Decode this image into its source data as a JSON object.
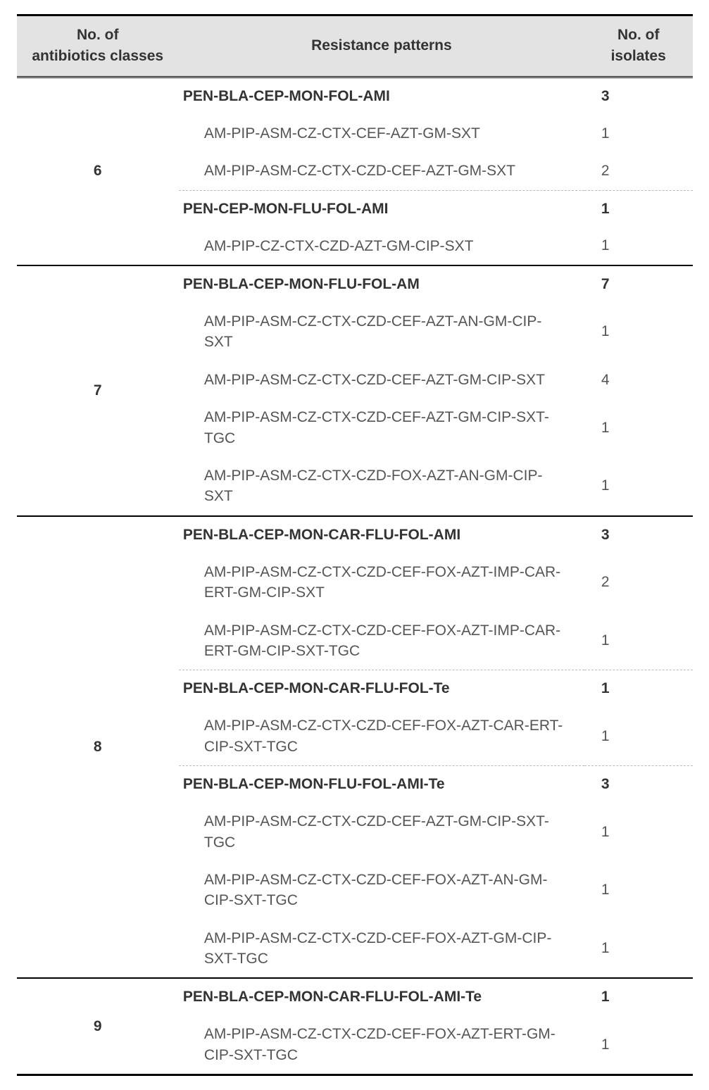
{
  "table": {
    "columns": [
      "No. of\nantibiotics classes",
      "Resistance patterns",
      "No. of\nisolates"
    ],
    "col_widths_pct": [
      24,
      60,
      16
    ],
    "header_bg": "#e3e3e3",
    "border_color": "#000000",
    "dashed_color": "#bbbbbb",
    "subtext_color": "#555555",
    "font_size_pt": 16,
    "classes": [
      {
        "num_classes": "6",
        "groups": [
          {
            "pattern_bold": "PEN-BLA-CEP-MON-FOL-AMI",
            "isolates_bold": "3",
            "subs": [
              {
                "pattern": "AM-PIP-ASM-CZ-CTX-CEF-AZT-GM-SXT",
                "isolates": "1"
              },
              {
                "pattern": "AM-PIP-ASM-CZ-CTX-CZD-CEF-AZT-GM-SXT",
                "isolates": "2"
              }
            ]
          },
          {
            "pattern_bold": "PEN-CEP-MON-FLU-FOL-AMI",
            "isolates_bold": "1",
            "subs": [
              {
                "pattern": "AM-PIP-CZ-CTX-CZD-AZT-GM-CIP-SXT",
                "isolates": "1"
              }
            ]
          }
        ]
      },
      {
        "num_classes": "7",
        "groups": [
          {
            "pattern_bold": "PEN-BLA-CEP-MON-FLU-FOL-AM",
            "isolates_bold": "7",
            "subs": [
              {
                "pattern": "AM-PIP-ASM-CZ-CTX-CZD-CEF-AZT-AN-GM-CIP-SXT",
                "isolates": "1"
              },
              {
                "pattern": "AM-PIP-ASM-CZ-CTX-CZD-CEF-AZT-GM-CIP-SXT",
                "isolates": "4"
              },
              {
                "pattern": "AM-PIP-ASM-CZ-CTX-CZD-CEF-AZT-GM-CIP-SXT-TGC",
                "isolates": "1"
              },
              {
                "pattern": "AM-PIP-ASM-CZ-CTX-CZD-FOX-AZT-AN-GM-CIP-SXT",
                "isolates": "1"
              }
            ]
          }
        ]
      },
      {
        "num_classes": "8",
        "groups": [
          {
            "pattern_bold": "PEN-BLA-CEP-MON-CAR-FLU-FOL-AMI",
            "isolates_bold": "3",
            "subs": [
              {
                "pattern": "AM-PIP-ASM-CZ-CTX-CZD-CEF-FOX-AZT-IMP-CAR-ERT-GM-CIP-SXT",
                "isolates": "2"
              },
              {
                "pattern": "AM-PIP-ASM-CZ-CTX-CZD-CEF-FOX-AZT-IMP-CAR-ERT-GM-CIP-SXT-TGC",
                "isolates": "1"
              }
            ]
          },
          {
            "pattern_bold": "PEN-BLA-CEP-MON-CAR-FLU-FOL-Te",
            "isolates_bold": "1",
            "subs": [
              {
                "pattern": "AM-PIP-ASM-CZ-CTX-CZD-CEF-FOX-AZT-CAR-ERT-CIP-SXT-TGC",
                "isolates": "1"
              }
            ]
          },
          {
            "pattern_bold": "PEN-BLA-CEP-MON-FLU-FOL-AMI-Te",
            "isolates_bold": "3",
            "subs": [
              {
                "pattern": "AM-PIP-ASM-CZ-CTX-CZD-CEF-AZT-GM-CIP-SXT-TGC",
                "isolates": "1"
              },
              {
                "pattern": "AM-PIP-ASM-CZ-CTX-CZD-CEF-FOX-AZT-AN-GM-CIP-SXT-TGC",
                "isolates": "1"
              },
              {
                "pattern": "AM-PIP-ASM-CZ-CTX-CZD-CEF-FOX-AZT-GM-CIP-SXT-TGC",
                "isolates": "1"
              }
            ]
          }
        ]
      },
      {
        "num_classes": "9",
        "groups": [
          {
            "pattern_bold": "PEN-BLA-CEP-MON-CAR-FLU-FOL-AMI-Te",
            "isolates_bold": "1",
            "subs": [
              {
                "pattern": "AM-PIP-ASM-CZ-CTX-CZD-CEF-FOX-AZT-ERT-GM-CIP-SXT-TGC",
                "isolates": "1"
              }
            ]
          }
        ]
      }
    ]
  }
}
